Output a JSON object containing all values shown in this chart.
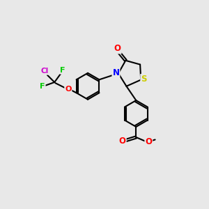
{
  "background_color": "#e8e8e8",
  "bond_color": "#000000",
  "atom_colors": {
    "O": "#ff0000",
    "N": "#0000ff",
    "S": "#cccc00",
    "F": "#00cc00",
    "Cl": "#cc00cc"
  },
  "figsize": [
    3.0,
    3.0
  ],
  "dpi": 100
}
